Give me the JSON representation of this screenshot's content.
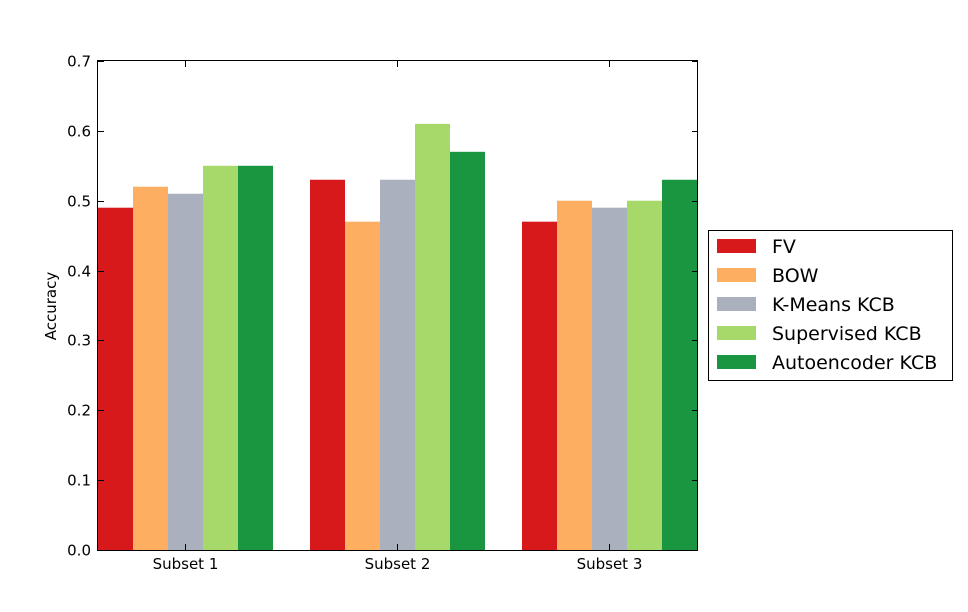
{
  "chart_data": {
    "type": "bar",
    "categories": [
      "Subset 1",
      "Subset 2",
      "Subset 3"
    ],
    "series": [
      {
        "name": "FV",
        "color": "#d7191c",
        "values": [
          0.49,
          0.53,
          0.47
        ]
      },
      {
        "name": "BOW",
        "color": "#fdae61",
        "values": [
          0.52,
          0.47,
          0.5
        ]
      },
      {
        "name": "K-Means KCB",
        "color": "#abb0bf",
        "values": [
          0.51,
          0.53,
          0.49
        ]
      },
      {
        "name": "Supervised KCB",
        "color": "#a6d96a",
        "values": [
          0.55,
          0.61,
          0.5
        ]
      },
      {
        "name": "Autoencoder KCB",
        "color": "#1a9641",
        "values": [
          0.55,
          0.57,
          0.53
        ]
      }
    ],
    "title": "",
    "xlabel": "",
    "ylabel": "Accuracy",
    "ylim": [
      0,
      0.7
    ],
    "yticks": [
      "0.0",
      "0.1",
      "0.2",
      "0.3",
      "0.4",
      "0.5",
      "0.6",
      "0.7"
    ],
    "grid": false,
    "legend_position": "right"
  }
}
